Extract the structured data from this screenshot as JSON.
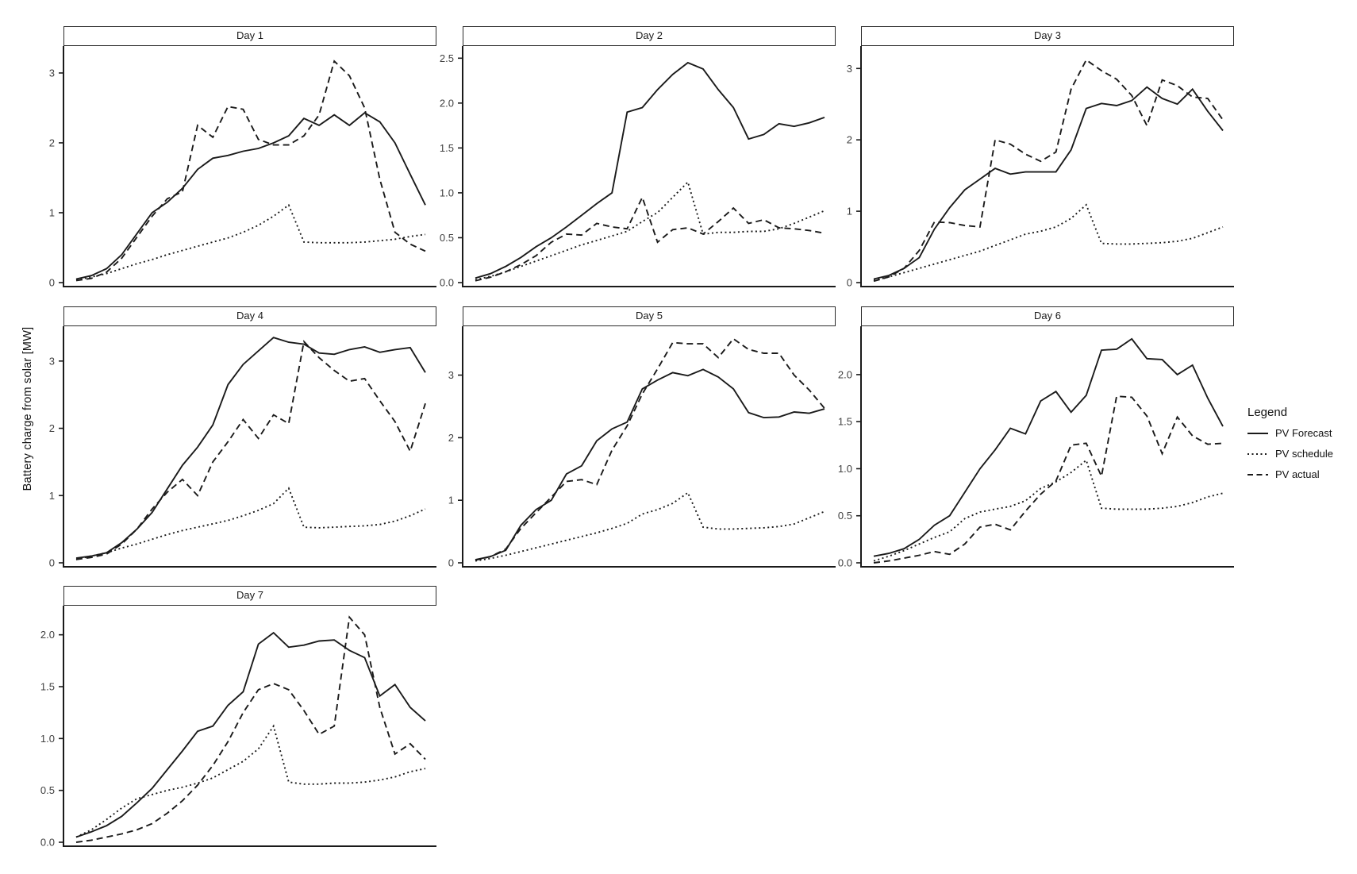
{
  "ylabel": "Battery charge from solar [MW]",
  "legend": {
    "title": "Legend",
    "items": [
      {
        "label": "PV Forecast",
        "style": "solid"
      },
      {
        "label": "PV schedule",
        "style": "dotted"
      },
      {
        "label": "PV actual",
        "style": "dashed"
      }
    ]
  },
  "colors": {
    "line": "#1a1a1a",
    "axis": "#1a1a1a",
    "tick_text": "#404040",
    "panel_border": "#2b2b2b",
    "background": "#ffffff"
  },
  "chart_data": {
    "type": "line",
    "xlabel": "",
    "x_axis": {
      "tick_labels": "none",
      "points_per_series": 24
    },
    "grid": "off",
    "legend_position": "right",
    "series_styles": {
      "PV Forecast": "solid",
      "PV schedule": "dotted",
      "PV actual": "dashed"
    },
    "facets": [
      {
        "title": "Day 1",
        "ymax_display": 3.34,
        "yticks": [
          {
            "label": "0",
            "value": 0
          },
          {
            "label": "1",
            "value": 1
          },
          {
            "label": "2",
            "value": 2
          },
          {
            "label": "3",
            "value": 3
          }
        ],
        "series": [
          {
            "name": "PV Forecast",
            "style": "solid",
            "values": [
              0.05,
              0.1,
              0.2,
              0.4,
              0.7,
              1.0,
              1.15,
              1.35,
              1.62,
              1.78,
              1.82,
              1.88,
              1.92,
              2.0,
              2.1,
              2.35,
              2.25,
              2.4,
              2.25,
              2.43,
              2.3,
              2.0,
              1.55,
              1.11
            ]
          },
          {
            "name": "PV schedule",
            "style": "dotted",
            "values": [
              0.04,
              0.08,
              0.13,
              0.2,
              0.27,
              0.33,
              0.4,
              0.46,
              0.52,
              0.58,
              0.64,
              0.72,
              0.82,
              0.95,
              1.11,
              0.58,
              0.57,
              0.57,
              0.57,
              0.58,
              0.6,
              0.62,
              0.66,
              0.69
            ]
          },
          {
            "name": "PV actual",
            "style": "dashed",
            "values": [
              0.03,
              0.06,
              0.15,
              0.35,
              0.65,
              0.95,
              1.2,
              1.3,
              2.25,
              2.08,
              2.52,
              2.48,
              2.05,
              1.97,
              1.97,
              2.1,
              2.4,
              3.17,
              2.96,
              2.5,
              1.48,
              0.72,
              0.55,
              0.45
            ]
          }
        ]
      },
      {
        "title": "Day 2",
        "ymax_display": 2.6,
        "yticks": [
          {
            "label": "0.0",
            "value": 0
          },
          {
            "label": "0.5",
            "value": 0.5
          },
          {
            "label": "1.0",
            "value": 1.0
          },
          {
            "label": "1.5",
            "value": 1.5
          },
          {
            "label": "2.0",
            "value": 2.0
          },
          {
            "label": "2.5",
            "value": 2.5
          }
        ],
        "series": [
          {
            "name": "PV Forecast",
            "style": "solid",
            "values": [
              0.05,
              0.1,
              0.18,
              0.28,
              0.4,
              0.5,
              0.62,
              0.75,
              0.88,
              1.0,
              1.9,
              1.95,
              2.15,
              2.32,
              2.45,
              2.38,
              2.15,
              1.95,
              1.6,
              1.65,
              1.77,
              1.74,
              1.78,
              1.84
            ]
          },
          {
            "name": "PV schedule",
            "style": "dotted",
            "values": [
              0.03,
              0.07,
              0.12,
              0.18,
              0.24,
              0.3,
              0.36,
              0.42,
              0.47,
              0.52,
              0.57,
              0.68,
              0.78,
              0.95,
              1.12,
              0.54,
              0.56,
              0.56,
              0.57,
              0.57,
              0.6,
              0.66,
              0.73,
              0.8
            ]
          },
          {
            "name": "PV actual",
            "style": "dashed",
            "values": [
              0.02,
              0.06,
              0.12,
              0.2,
              0.3,
              0.45,
              0.54,
              0.53,
              0.66,
              0.62,
              0.6,
              0.95,
              0.45,
              0.59,
              0.61,
              0.54,
              0.68,
              0.83,
              0.66,
              0.7,
              0.61,
              0.6,
              0.58,
              0.55
            ]
          }
        ]
      },
      {
        "title": "Day 3",
        "ymax_display": 3.27,
        "yticks": [
          {
            "label": "0",
            "value": 0
          },
          {
            "label": "1",
            "value": 1
          },
          {
            "label": "2",
            "value": 2
          },
          {
            "label": "3",
            "value": 3
          }
        ],
        "series": [
          {
            "name": "PV Forecast",
            "style": "solid",
            "values": [
              0.05,
              0.1,
              0.2,
              0.35,
              0.75,
              1.05,
              1.3,
              1.45,
              1.6,
              1.52,
              1.55,
              1.55,
              1.55,
              1.86,
              2.44,
              2.51,
              2.48,
              2.55,
              2.74,
              2.58,
              2.5,
              2.71,
              2.4,
              2.13
            ]
          },
          {
            "name": "PV schedule",
            "style": "dotted",
            "values": [
              0.03,
              0.08,
              0.14,
              0.2,
              0.26,
              0.32,
              0.38,
              0.44,
              0.52,
              0.6,
              0.68,
              0.72,
              0.78,
              0.9,
              1.09,
              0.55,
              0.54,
              0.54,
              0.55,
              0.56,
              0.58,
              0.62,
              0.7,
              0.78
            ]
          },
          {
            "name": "PV actual",
            "style": "dashed",
            "values": [
              0.02,
              0.08,
              0.2,
              0.45,
              0.85,
              0.84,
              0.8,
              0.78,
              2.0,
              1.94,
              1.8,
              1.7,
              1.83,
              2.71,
              3.12,
              2.97,
              2.85,
              2.62,
              2.2,
              2.84,
              2.76,
              2.6,
              2.58,
              2.28
            ]
          }
        ]
      },
      {
        "title": "Day 4",
        "ymax_display": 3.47,
        "yticks": [
          {
            "label": "0",
            "value": 0
          },
          {
            "label": "1",
            "value": 1
          },
          {
            "label": "2",
            "value": 2
          },
          {
            "label": "3",
            "value": 3
          }
        ],
        "series": [
          {
            "name": "PV Forecast",
            "style": "solid",
            "values": [
              0.07,
              0.1,
              0.15,
              0.3,
              0.5,
              0.75,
              1.1,
              1.45,
              1.72,
              2.05,
              2.65,
              2.95,
              3.15,
              3.35,
              3.28,
              3.25,
              3.12,
              3.1,
              3.17,
              3.21,
              3.13,
              3.17,
              3.2,
              2.83
            ]
          },
          {
            "name": "PV schedule",
            "style": "dotted",
            "values": [
              0.05,
              0.1,
              0.15,
              0.22,
              0.28,
              0.35,
              0.42,
              0.48,
              0.53,
              0.58,
              0.63,
              0.7,
              0.78,
              0.88,
              1.11,
              0.53,
              0.52,
              0.53,
              0.54,
              0.55,
              0.57,
              0.62,
              0.7,
              0.8
            ]
          },
          {
            "name": "PV actual",
            "style": "dashed",
            "values": [
              0.05,
              0.08,
              0.13,
              0.28,
              0.5,
              0.8,
              1.05,
              1.24,
              1.0,
              1.5,
              1.8,
              2.13,
              1.85,
              2.2,
              2.07,
              3.29,
              3.05,
              2.86,
              2.7,
              2.74,
              2.41,
              2.1,
              1.66,
              2.37
            ]
          }
        ]
      },
      {
        "title": "Day 5",
        "ymax_display": 3.73,
        "yticks": [
          {
            "label": "0",
            "value": 0
          },
          {
            "label": "1",
            "value": 1
          },
          {
            "label": "2",
            "value": 2
          },
          {
            "label": "3",
            "value": 3
          }
        ],
        "series": [
          {
            "name": "PV Forecast",
            "style": "solid",
            "values": [
              0.05,
              0.1,
              0.2,
              0.6,
              0.85,
              1.0,
              1.42,
              1.55,
              1.95,
              2.14,
              2.25,
              2.78,
              2.92,
              3.04,
              2.99,
              3.09,
              2.97,
              2.78,
              2.4,
              2.32,
              2.33,
              2.41,
              2.39,
              2.46
            ]
          },
          {
            "name": "PV schedule",
            "style": "dotted",
            "values": [
              0.03,
              0.07,
              0.12,
              0.18,
              0.24,
              0.3,
              0.36,
              0.42,
              0.48,
              0.55,
              0.63,
              0.78,
              0.85,
              0.95,
              1.12,
              0.57,
              0.54,
              0.54,
              0.55,
              0.56,
              0.58,
              0.62,
              0.72,
              0.82
            ]
          },
          {
            "name": "PV actual",
            "style": "dashed",
            "values": [
              0.04,
              0.1,
              0.22,
              0.55,
              0.8,
              1.05,
              1.3,
              1.33,
              1.25,
              1.8,
              2.19,
              2.7,
              3.1,
              3.52,
              3.5,
              3.5,
              3.28,
              3.58,
              3.41,
              3.35,
              3.35,
              3.0,
              2.76,
              2.47
            ]
          }
        ]
      },
      {
        "title": "Day 6",
        "ymax_display": 2.48,
        "yticks": [
          {
            "label": "0.0",
            "value": 0
          },
          {
            "label": "0.5",
            "value": 0.5
          },
          {
            "label": "1.0",
            "value": 1.0
          },
          {
            "label": "1.5",
            "value": 1.5
          },
          {
            "label": "2.0",
            "value": 2.0
          }
        ],
        "series": [
          {
            "name": "PV Forecast",
            "style": "solid",
            "values": [
              0.07,
              0.1,
              0.15,
              0.25,
              0.4,
              0.5,
              0.75,
              1.0,
              1.2,
              1.43,
              1.37,
              1.72,
              1.82,
              1.6,
              1.78,
              2.26,
              2.27,
              2.38,
              2.17,
              2.16,
              2.0,
              2.1,
              1.75,
              1.45
            ]
          },
          {
            "name": "PV schedule",
            "style": "dotted",
            "values": [
              0.02,
              0.07,
              0.13,
              0.2,
              0.27,
              0.33,
              0.47,
              0.54,
              0.57,
              0.6,
              0.66,
              0.79,
              0.86,
              0.96,
              1.09,
              0.58,
              0.57,
              0.57,
              0.57,
              0.58,
              0.6,
              0.64,
              0.7,
              0.74
            ]
          },
          {
            "name": "PV actual",
            "style": "dashed",
            "values": [
              0.0,
              0.02,
              0.05,
              0.08,
              0.12,
              0.09,
              0.2,
              0.38,
              0.41,
              0.35,
              0.55,
              0.73,
              0.87,
              1.25,
              1.27,
              0.92,
              1.77,
              1.76,
              1.56,
              1.16,
              1.55,
              1.35,
              1.26,
              1.27
            ]
          }
        ]
      },
      {
        "title": "Day 7",
        "ymax_display": 2.25,
        "yticks": [
          {
            "label": "0.0",
            "value": 0
          },
          {
            "label": "0.5",
            "value": 0.5
          },
          {
            "label": "1.0",
            "value": 1.0
          },
          {
            "label": "1.5",
            "value": 1.5
          },
          {
            "label": "2.0",
            "value": 2.0
          }
        ],
        "series": [
          {
            "name": "PV Forecast",
            "style": "solid",
            "values": [
              0.05,
              0.1,
              0.16,
              0.25,
              0.38,
              0.52,
              0.7,
              0.88,
              1.07,
              1.12,
              1.32,
              1.45,
              1.91,
              2.02,
              1.88,
              1.9,
              1.94,
              1.95,
              1.85,
              1.78,
              1.41,
              1.52,
              1.3,
              1.17
            ]
          },
          {
            "name": "PV schedule",
            "style": "dotted",
            "values": [
              0.05,
              0.12,
              0.22,
              0.33,
              0.42,
              0.46,
              0.5,
              0.53,
              0.57,
              0.62,
              0.7,
              0.78,
              0.9,
              1.12,
              0.58,
              0.56,
              0.56,
              0.57,
              0.57,
              0.58,
              0.6,
              0.63,
              0.68,
              0.71
            ]
          },
          {
            "name": "PV actual",
            "style": "dashed",
            "values": [
              0.0,
              0.02,
              0.05,
              0.08,
              0.12,
              0.18,
              0.28,
              0.4,
              0.55,
              0.74,
              0.97,
              1.25,
              1.47,
              1.53,
              1.47,
              1.27,
              1.04,
              1.12,
              2.17,
              2.0,
              1.3,
              0.85,
              0.95,
              0.8
            ]
          }
        ]
      }
    ]
  }
}
